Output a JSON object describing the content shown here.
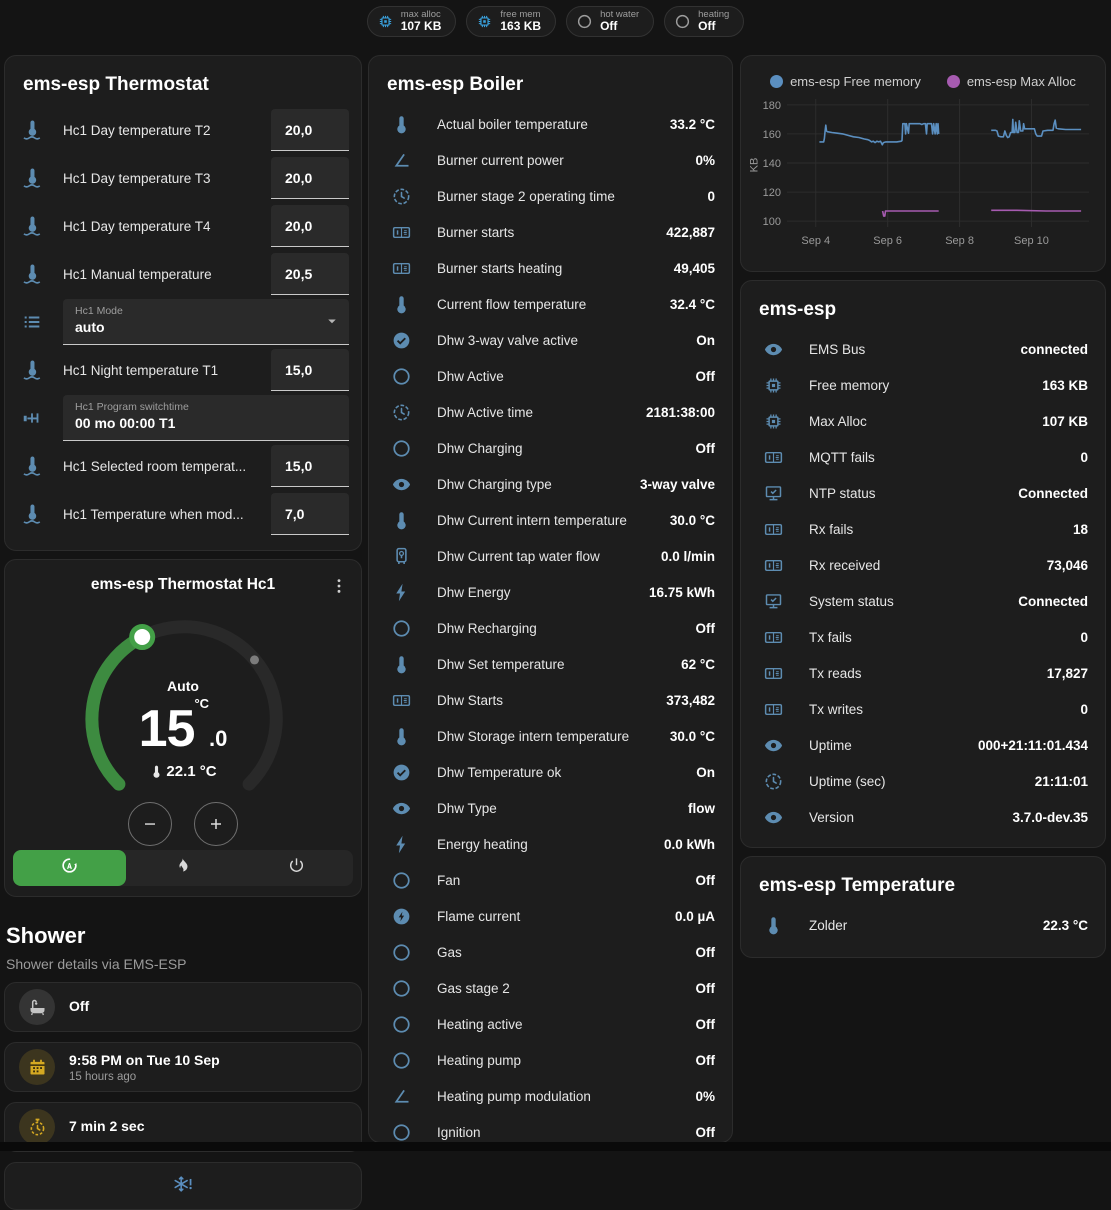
{
  "header": {
    "badges": [
      {
        "icon": "chip",
        "icon_color": "blue",
        "label": "max alloc",
        "value": "107 KB"
      },
      {
        "icon": "chip",
        "icon_color": "blue",
        "label": "free mem",
        "value": "163 KB"
      },
      {
        "icon": "circle",
        "icon_color": "gray",
        "label": "hot water",
        "value": "Off"
      },
      {
        "icon": "circle",
        "icon_color": "gray",
        "label": "heating",
        "value": "Off"
      }
    ]
  },
  "thermostat_panel": {
    "title": "ems-esp Thermostat",
    "rows": [
      {
        "icon": "thermometer-water",
        "label": "Hc1 Day temperature T2",
        "control": "number",
        "value": "20,0"
      },
      {
        "icon": "thermometer-water",
        "label": "Hc1 Day temperature T3",
        "control": "number",
        "value": "20,0"
      },
      {
        "icon": "thermometer-water",
        "label": "Hc1 Day temperature T4",
        "control": "number",
        "value": "20,0"
      },
      {
        "icon": "thermometer-water",
        "label": "Hc1 Manual temperature",
        "control": "number",
        "value": "20,5"
      },
      {
        "icon": "list",
        "label": "Hc1 Mode",
        "control": "select",
        "value": "auto"
      },
      {
        "icon": "thermometer-water",
        "label": "Hc1 Night temperature T1",
        "control": "number",
        "value": "15,0"
      },
      {
        "icon": "pipe",
        "label": "Hc1 Program switchtime",
        "control": "text",
        "value": "00 mo 00:00 T1"
      },
      {
        "icon": "thermometer-water",
        "label": "Hc1 Selected room temperat...",
        "control": "number",
        "value": "15,0"
      },
      {
        "icon": "thermometer-water",
        "label": "Hc1 Temperature when mod...",
        "control": "number",
        "value": "7,0"
      }
    ]
  },
  "hc1_card": {
    "title": "ems-esp Thermostat Hc1",
    "mode_label": "Auto",
    "target_whole": "15",
    "target_decimal": ".0",
    "target_unit": "°C",
    "current_temperature": "22.1 °C",
    "modes": [
      {
        "icon": "auto-mode",
        "active": true
      },
      {
        "icon": "fire",
        "active": false
      },
      {
        "icon": "power",
        "active": false
      }
    ],
    "accent_color": "#43a047"
  },
  "shower": {
    "title": "Shower",
    "subtitle": "Shower details via EMS-ESP",
    "cards": [
      {
        "icon": "bathtub",
        "icon_theme": "gray",
        "title": "Off",
        "subtitle": ""
      },
      {
        "icon": "calendar",
        "icon_theme": "amber",
        "title": "9:58 PM on Tue 10 Sep",
        "subtitle": "15 hours ago"
      },
      {
        "icon": "timer",
        "icon_theme": "amber",
        "title": "7 min 2 sec",
        "subtitle": ""
      },
      {
        "icon": "snowflake-alert",
        "icon_theme": "blue-center",
        "title": "",
        "subtitle": ""
      }
    ]
  },
  "boiler_panel": {
    "title": "ems-esp Boiler",
    "rows": [
      {
        "icon": "thermometer",
        "label": "Actual boiler temperature",
        "value": "33.2 °C"
      },
      {
        "icon": "angle",
        "label": "Burner current power",
        "value": "0%"
      },
      {
        "icon": "clock",
        "label": "Burner stage 2 operating time",
        "value": "0"
      },
      {
        "icon": "counter",
        "label": "Burner starts",
        "value": "422,887"
      },
      {
        "icon": "counter",
        "label": "Burner starts heating",
        "value": "49,405"
      },
      {
        "icon": "thermometer",
        "label": "Current flow temperature",
        "value": "32.4 °C"
      },
      {
        "icon": "check-circle",
        "label": "Dhw 3-way valve active",
        "value": "On"
      },
      {
        "icon": "circle",
        "label": "Dhw Active",
        "value": "Off"
      },
      {
        "icon": "clock",
        "label": "Dhw Active time",
        "value": "2181:38:00"
      },
      {
        "icon": "circle",
        "label": "Dhw Charging",
        "value": "Off"
      },
      {
        "icon": "eye",
        "label": "Dhw Charging type",
        "value": "3-way valve"
      },
      {
        "icon": "thermometer",
        "label": "Dhw Current intern temperature",
        "value": "30.0 °C"
      },
      {
        "icon": "water-boiler",
        "label": "Dhw Current tap water flow",
        "value": "0.0 l/min"
      },
      {
        "icon": "flash",
        "label": "Dhw Energy",
        "value": "16.75 kWh"
      },
      {
        "icon": "circle",
        "label": "Dhw Recharging",
        "value": "Off"
      },
      {
        "icon": "thermometer",
        "label": "Dhw Set temperature",
        "value": "62 °C"
      },
      {
        "icon": "counter",
        "label": "Dhw Starts",
        "value": "373,482"
      },
      {
        "icon": "thermometer",
        "label": "Dhw Storage intern temperature",
        "value": "30.0 °C"
      },
      {
        "icon": "check-circle",
        "label": "Dhw Temperature ok",
        "value": "On"
      },
      {
        "icon": "eye",
        "label": "Dhw Type",
        "value": "flow"
      },
      {
        "icon": "flash",
        "label": "Energy heating",
        "value": "0.0 kWh"
      },
      {
        "icon": "circle",
        "label": "Fan",
        "value": "Off"
      },
      {
        "icon": "flash-circle",
        "label": "Flame current",
        "value": "0.0 µA"
      },
      {
        "icon": "circle",
        "label": "Gas",
        "value": "Off"
      },
      {
        "icon": "circle",
        "label": "Gas stage 2",
        "value": "Off"
      },
      {
        "icon": "circle",
        "label": "Heating active",
        "value": "Off"
      },
      {
        "icon": "circle",
        "label": "Heating pump",
        "value": "Off"
      },
      {
        "icon": "angle",
        "label": "Heating pump modulation",
        "value": "0%"
      },
      {
        "icon": "circle",
        "label": "Ignition",
        "value": "Off"
      }
    ]
  },
  "emsesp_panel": {
    "title": "ems-esp",
    "rows": [
      {
        "icon": "eye",
        "label": "EMS Bus",
        "value": "connected"
      },
      {
        "icon": "chip",
        "label": "Free memory",
        "value": "163 KB"
      },
      {
        "icon": "chip",
        "label": "Max Alloc",
        "value": "107 KB"
      },
      {
        "icon": "counter",
        "label": "MQTT fails",
        "value": "0"
      },
      {
        "icon": "network",
        "label": "NTP status",
        "value": "Connected"
      },
      {
        "icon": "counter",
        "label": "Rx fails",
        "value": "18"
      },
      {
        "icon": "counter",
        "label": "Rx received",
        "value": "73,046"
      },
      {
        "icon": "network",
        "label": "System status",
        "value": "Connected"
      },
      {
        "icon": "counter",
        "label": "Tx fails",
        "value": "0"
      },
      {
        "icon": "counter",
        "label": "Tx reads",
        "value": "17,827"
      },
      {
        "icon": "counter",
        "label": "Tx writes",
        "value": "0"
      },
      {
        "icon": "eye",
        "label": "Uptime",
        "value": "000+21:11:01.434"
      },
      {
        "icon": "clock",
        "label": "Uptime (sec)",
        "value": "21:11:01"
      },
      {
        "icon": "eye",
        "label": "Version",
        "value": "3.7.0-dev.35"
      }
    ]
  },
  "temperature_panel": {
    "title": "ems-esp Temperature",
    "rows": [
      {
        "icon": "thermometer",
        "label": "Zolder",
        "value": "22.3 °C"
      }
    ]
  },
  "chart_data": {
    "type": "line",
    "title": "",
    "xlabel": "",
    "ylabel": "KB",
    "ylim": [
      100,
      180
    ],
    "yticks": [
      100,
      120,
      140,
      160,
      180
    ],
    "xlim": [
      3.2,
      11.6
    ],
    "xticks": [
      {
        "x": 4,
        "label": "Sep 4"
      },
      {
        "x": 6,
        "label": "Sep 6"
      },
      {
        "x": 8,
        "label": "Sep 8"
      },
      {
        "x": 10,
        "label": "Sep 10"
      }
    ],
    "grid": true,
    "legend_position": "top",
    "series": [
      {
        "name": "ems-esp Free memory",
        "color": "#5b8fc0",
        "points": [
          [
            4.1,
            154.5
          ],
          [
            4.22,
            154.5
          ],
          [
            4.24,
            157
          ],
          [
            4.26,
            162
          ],
          [
            4.28,
            166
          ],
          [
            4.3,
            162
          ],
          [
            4.32,
            161.5
          ],
          [
            4.45,
            161
          ],
          [
            4.6,
            160.5
          ],
          [
            4.75,
            160
          ],
          [
            4.9,
            159
          ],
          [
            5.05,
            158
          ],
          [
            5.2,
            157.5
          ],
          [
            5.35,
            156.5
          ],
          [
            5.45,
            156
          ],
          [
            5.5,
            155.5
          ],
          [
            5.55,
            154.5
          ],
          [
            5.6,
            155
          ],
          [
            5.65,
            154
          ],
          [
            5.7,
            155
          ],
          [
            5.75,
            154.5
          ],
          [
            5.8,
            155
          ],
          [
            5.85,
            152.5
          ],
          [
            5.88,
            154
          ],
          [
            5.95,
            154.5
          ],
          [
            6.1,
            154.5
          ],
          [
            6.25,
            154.5
          ],
          [
            6.38,
            155
          ],
          [
            6.4,
            155.5
          ],
          [
            6.42,
            167
          ],
          [
            6.48,
            167
          ],
          [
            6.5,
            160
          ],
          [
            6.52,
            167
          ],
          [
            6.58,
            160.5
          ],
          [
            6.6,
            167
          ],
          [
            6.9,
            167
          ],
          [
            6.95,
            166.5
          ],
          [
            7.0,
            167
          ],
          [
            7.05,
            167
          ],
          [
            7.08,
            160
          ],
          [
            7.1,
            167
          ],
          [
            7.22,
            167
          ],
          [
            7.25,
            160
          ],
          [
            7.28,
            167
          ],
          [
            7.32,
            160
          ],
          [
            7.35,
            167
          ],
          [
            7.38,
            160
          ],
          [
            7.4,
            167
          ],
          [
            7.42,
            160
          ],
          null,
          [
            8.88,
            162.5
          ],
          [
            9.0,
            162.5
          ],
          [
            9.04,
            162
          ],
          [
            9.08,
            158.5
          ],
          [
            9.15,
            158
          ],
          [
            9.22,
            158
          ],
          [
            9.26,
            162
          ],
          [
            9.3,
            159
          ],
          [
            9.34,
            157.5
          ],
          [
            9.38,
            158
          ],
          [
            9.42,
            161
          ],
          [
            9.46,
            161
          ],
          [
            9.48,
            170
          ],
          [
            9.5,
            161
          ],
          [
            9.54,
            161
          ],
          [
            9.56,
            168
          ],
          [
            9.6,
            161
          ],
          [
            9.64,
            161
          ],
          [
            9.66,
            169
          ],
          [
            9.7,
            162
          ],
          [
            9.76,
            162
          ],
          [
            9.78,
            167
          ],
          [
            9.81,
            163.5
          ],
          [
            9.95,
            163.5
          ],
          [
            10.08,
            163.5
          ],
          [
            10.12,
            160
          ],
          [
            10.16,
            158.5
          ],
          [
            10.28,
            158.5
          ],
          [
            10.32,
            162
          ],
          [
            10.45,
            162.5
          ],
          [
            10.6,
            162.5
          ],
          [
            10.63,
            167
          ],
          [
            10.66,
            169.5
          ],
          [
            10.69,
            164
          ],
          [
            10.75,
            163.5
          ],
          [
            10.95,
            163
          ],
          [
            11.2,
            163
          ],
          [
            11.38,
            163
          ]
        ]
      },
      {
        "name": "ems-esp Max Alloc",
        "color": "#a65bb0",
        "points": [
          [
            5.86,
            107
          ],
          [
            5.89,
            103.5
          ],
          [
            5.92,
            103.5
          ],
          [
            5.94,
            107
          ],
          [
            6.5,
            107
          ],
          [
            7.1,
            107
          ],
          [
            7.42,
            107
          ],
          null,
          [
            8.88,
            107.5
          ],
          [
            9.6,
            107.5
          ],
          [
            10.4,
            107
          ],
          [
            11.38,
            107
          ]
        ]
      }
    ]
  },
  "colors": {
    "page_bg": "#141414",
    "panel_bg": "#1d1d1d",
    "icon_blue": "#5d8cb1",
    "badge_icon_blue": "#39a1dd",
    "amber": "#d5a922",
    "accent_green": "#43a047",
    "chart_blue": "#5b8fc0",
    "chart_purple": "#a65bb0"
  }
}
